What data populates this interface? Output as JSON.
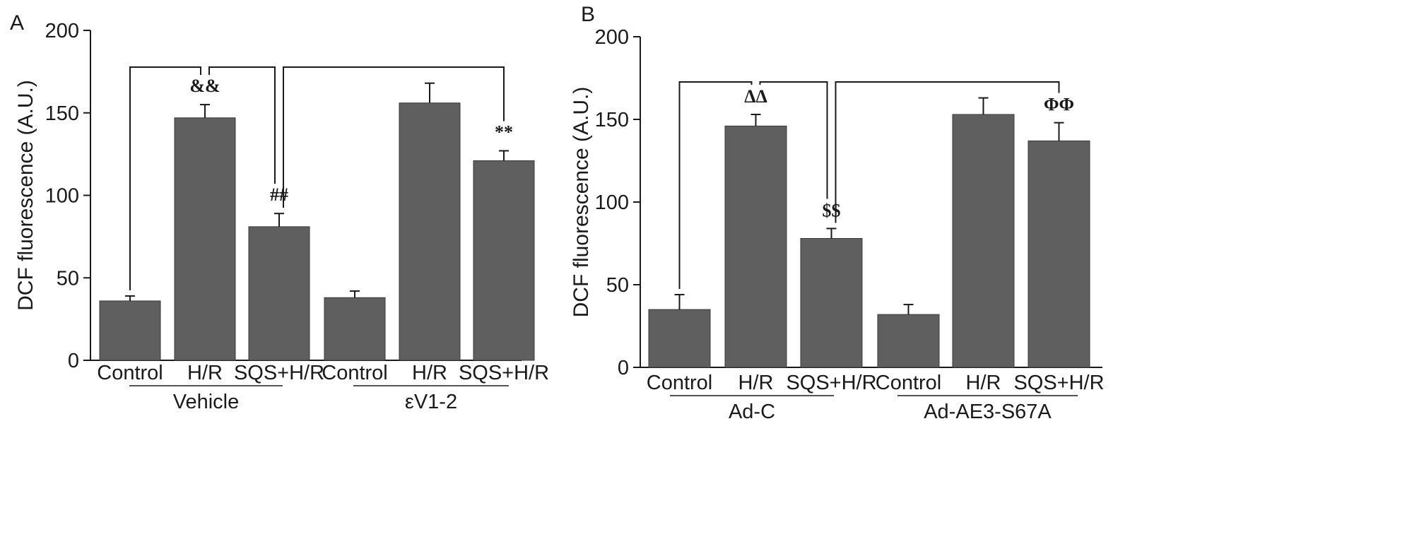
{
  "chart_data": [
    {
      "panel": "A",
      "type": "bar",
      "ylabel": "DCF fluorescence (A.U.)",
      "ylim": [
        0,
        200
      ],
      "yticks": [
        0,
        50,
        100,
        150,
        200
      ],
      "categories": [
        "Control",
        "H/R",
        "SQS+H/R",
        "Control",
        "H/R",
        "SQS+H/R"
      ],
      "values": [
        36,
        147,
        81,
        38,
        156,
        121
      ],
      "errors": [
        3,
        8,
        8,
        4,
        12,
        6
      ],
      "groups": [
        {
          "label": "Vehicle",
          "from": 0,
          "to": 2
        },
        {
          "label": "εV1-2",
          "from": 3,
          "to": 5
        }
      ],
      "annotations": [
        "",
        "&&",
        "##",
        "",
        "",
        "**"
      ],
      "brackets": [
        {
          "from": 0,
          "to": 1
        },
        {
          "from": 1,
          "to": 2
        },
        {
          "from": 2,
          "to": 5
        }
      ],
      "grid": false
    },
    {
      "panel": "B",
      "type": "bar",
      "ylabel": "DCF fluorescence (A.U.)",
      "ylim": [
        0,
        200
      ],
      "yticks": [
        0,
        50,
        100,
        150,
        200
      ],
      "categories": [
        "Control",
        "H/R",
        "SQS+H/R",
        "Control",
        "H/R",
        "SQS+H/R"
      ],
      "values": [
        35,
        146,
        78,
        32,
        153,
        137
      ],
      "errors": [
        9,
        7,
        6,
        6,
        10,
        11
      ],
      "groups": [
        {
          "label": "Ad-C",
          "from": 0,
          "to": 2
        },
        {
          "label": "Ad-AE3-S67A",
          "from": 3,
          "to": 5
        }
      ],
      "annotations": [
        "",
        "ΔΔ",
        "$$",
        "",
        "",
        "ΦΦ"
      ],
      "brackets": [
        {
          "from": 0,
          "to": 1
        },
        {
          "from": 1,
          "to": 2
        },
        {
          "from": 2,
          "to": 5
        }
      ],
      "grid": false
    }
  ],
  "style": {
    "bar_color": "#5f5f5f",
    "axis_color": "#1a1a1a"
  }
}
